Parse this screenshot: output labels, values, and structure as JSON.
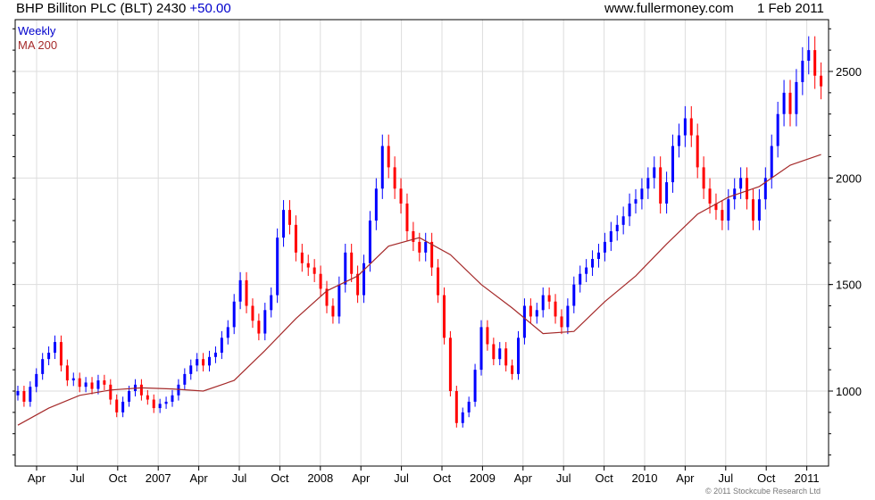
{
  "header": {
    "title": "BHP Billiton PLC (BLT) 2430",
    "change": "+50.00",
    "site": "www.fullermoney.com",
    "date": "1 Feb 2011"
  },
  "legend": {
    "series1": "Weekly",
    "series2": "MA 200"
  },
  "copyright": "© 2011 Stockcube Research Ltd",
  "colors": {
    "up": "#0000ff",
    "down": "#ff0000",
    "ma": "#a52a2a",
    "grid": "#dddddd"
  },
  "chart_data": {
    "type": "candlestick",
    "title": "BHP Billiton PLC (BLT)",
    "period": "Feb 2006 - Feb 2011, bi-weekly samples",
    "ylim": [
      648,
      2743
    ],
    "yticks": [
      1000,
      1500,
      2000,
      2500
    ],
    "xticks": [
      "Apr",
      "Jul",
      "Oct",
      "2007",
      "Apr",
      "Jul",
      "Oct",
      "2008",
      "Apr",
      "Jul",
      "Oct",
      "2009",
      "Apr",
      "Jul",
      "Oct",
      "2010",
      "Apr",
      "Jul",
      "Oct",
      "2011"
    ],
    "close": [
      1000,
      950,
      1020,
      1080,
      1150,
      1180,
      1230,
      1120,
      1050,
      1060,
      1020,
      1040,
      1010,
      1050,
      1030,
      960,
      900,
      950,
      1000,
      1030,
      980,
      960,
      920,
      940,
      950,
      980,
      1030,
      1080,
      1120,
      1150,
      1120,
      1160,
      1180,
      1250,
      1300,
      1420,
      1520,
      1400,
      1330,
      1270,
      1380,
      1450,
      1720,
      1850,
      1780,
      1650,
      1600,
      1580,
      1550,
      1480,
      1400,
      1350,
      1500,
      1650,
      1550,
      1450,
      1600,
      1800,
      1950,
      2150,
      2050,
      1950,
      1880,
      1750,
      1700,
      1650,
      1700,
      1580,
      1450,
      1250,
      1000,
      850,
      900,
      950,
      1100,
      1300,
      1220,
      1150,
      1200,
      1120,
      1080,
      1250,
      1400,
      1350,
      1380,
      1450,
      1420,
      1350,
      1300,
      1400,
      1500,
      1550,
      1580,
      1620,
      1650,
      1700,
      1750,
      1780,
      1820,
      1880,
      1900,
      1950,
      2000,
      2050,
      1880,
      1980,
      2150,
      2200,
      2280,
      2200,
      2050,
      1950,
      1880,
      1850,
      1800,
      1900,
      1950,
      2000,
      1900,
      1800,
      1900,
      2000,
      2150,
      2300,
      2400,
      2300,
      2450,
      2550,
      2600,
      2480,
      2430
    ],
    "ma200_every5": [
      840,
      920,
      980,
      1005,
      1015,
      1010,
      1000,
      1050,
      1190,
      1340,
      1470,
      1540,
      1680,
      1720,
      1640,
      1500,
      1390,
      1270,
      1280,
      1420,
      1540,
      1690,
      1830,
      1910,
      1960,
      2060,
      2110
    ]
  }
}
